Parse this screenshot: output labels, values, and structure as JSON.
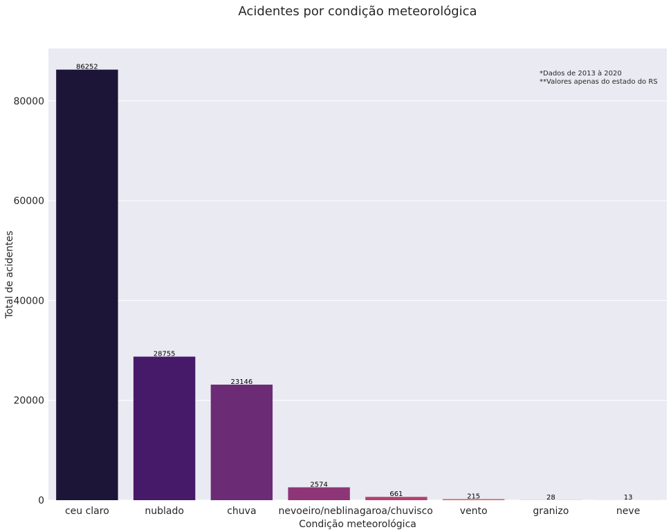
{
  "chart_data": {
    "type": "bar",
    "title": "Acidentes por condição meteorológica",
    "xlabel": "Condição meteorológica",
    "ylabel": "Total de acidentes",
    "categories": [
      "ceu claro",
      "nublado",
      "chuva",
      "nevoeiro/neblina",
      "garoa/chuvisco",
      "vento",
      "granizo",
      "neve"
    ],
    "values": [
      86252,
      28755,
      23146,
      2574,
      661,
      215,
      28,
      13
    ],
    "data_labels": [
      "86252",
      "28755",
      "23146",
      "2574",
      "661",
      "215",
      "28",
      "13"
    ],
    "colors": [
      "#1c1538",
      "#471a69",
      "#6b2c75",
      "#8e3577",
      "#b5416d",
      "#dc5b62",
      "#f07f55",
      "#f5a862"
    ],
    "yticks": [
      0,
      20000,
      40000,
      60000,
      80000
    ],
    "ytick_labels": [
      "0",
      "20000",
      "40000",
      "60000",
      "80000"
    ],
    "ylim": [
      0,
      90500
    ],
    "grid": true,
    "background": "#eaeaf2",
    "annotations": [
      "*Dados de 2013 à 2020",
      "**Valores apenas do estado do RS"
    ],
    "annotation_position": "top-right"
  }
}
